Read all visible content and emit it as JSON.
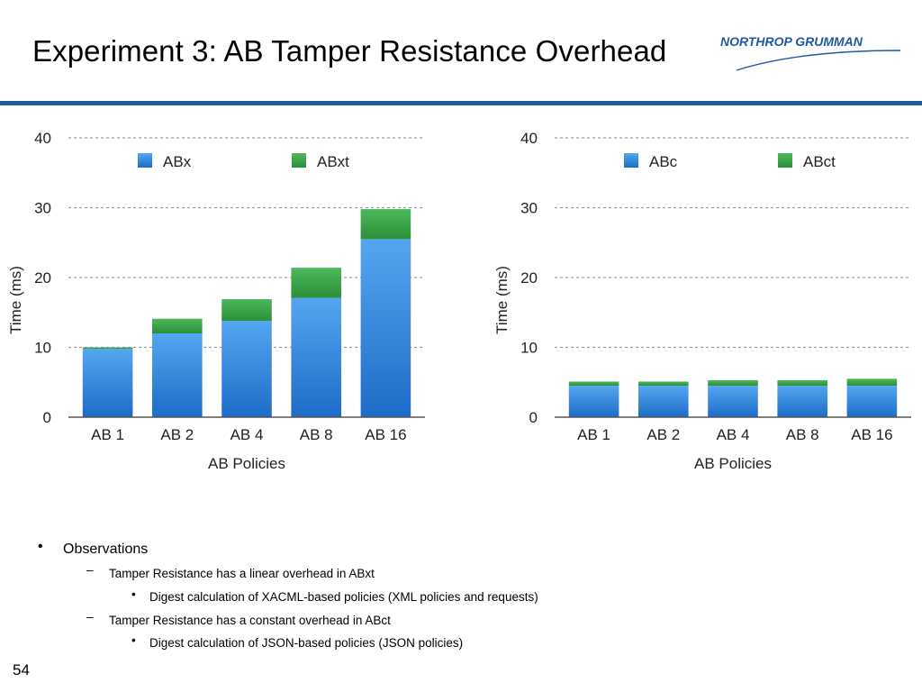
{
  "slide": {
    "title": "Experiment 3: AB Tamper Resistance Overhead",
    "logo_text": "NORTHROP GRUMMAN",
    "page_number": "54",
    "rule_color": "#1f5aa0"
  },
  "chart_data": [
    {
      "type": "bar",
      "stacked": true,
      "categories": [
        "AB 1",
        "AB 2",
        "AB 4",
        "AB 8",
        "AB 16"
      ],
      "series": [
        {
          "name": "ABx",
          "values": [
            9.8,
            12.0,
            13.8,
            17.1,
            25.5
          ],
          "color": "#3e8fe0"
        },
        {
          "name": "ABxt",
          "values": [
            0.2,
            2.1,
            3.1,
            4.3,
            4.3
          ],
          "color": "#3aa346"
        }
      ],
      "xlabel": "AB Policies",
      "ylabel": "Time (ms)",
      "ylim": [
        0,
        40
      ],
      "yticks": [
        0,
        10,
        20,
        30,
        40
      ],
      "grid": true,
      "legend": "top"
    },
    {
      "type": "bar",
      "stacked": true,
      "categories": [
        "AB 1",
        "AB 2",
        "AB 4",
        "AB 8",
        "AB 16"
      ],
      "series": [
        {
          "name": "ABc",
          "values": [
            4.5,
            4.5,
            4.5,
            4.5,
            4.5
          ],
          "color": "#3e8fe0"
        },
        {
          "name": "ABct",
          "values": [
            0.6,
            0.6,
            0.8,
            0.8,
            1.0
          ],
          "color": "#3aa346"
        }
      ],
      "xlabel": "AB Policies",
      "ylabel": "Time (ms)",
      "ylim": [
        0,
        40
      ],
      "yticks": [
        0,
        10,
        20,
        30,
        40
      ],
      "grid": true,
      "legend": "top"
    }
  ],
  "bullets": [
    {
      "level": 1,
      "marker": "•",
      "text": "Observations"
    },
    {
      "level": 2,
      "marker": "–",
      "text": "Tamper Resistance has a linear overhead in ABxt"
    },
    {
      "level": 3,
      "marker": "•",
      "text": "Digest calculation of XACML-based policies (XML policies and requests)"
    },
    {
      "level": 2,
      "marker": "–",
      "text": "Tamper Resistance has a constant overhead in ABct"
    },
    {
      "level": 3,
      "marker": "•",
      "text": "Digest calculation of JSON-based policies (JSON policies)"
    }
  ]
}
